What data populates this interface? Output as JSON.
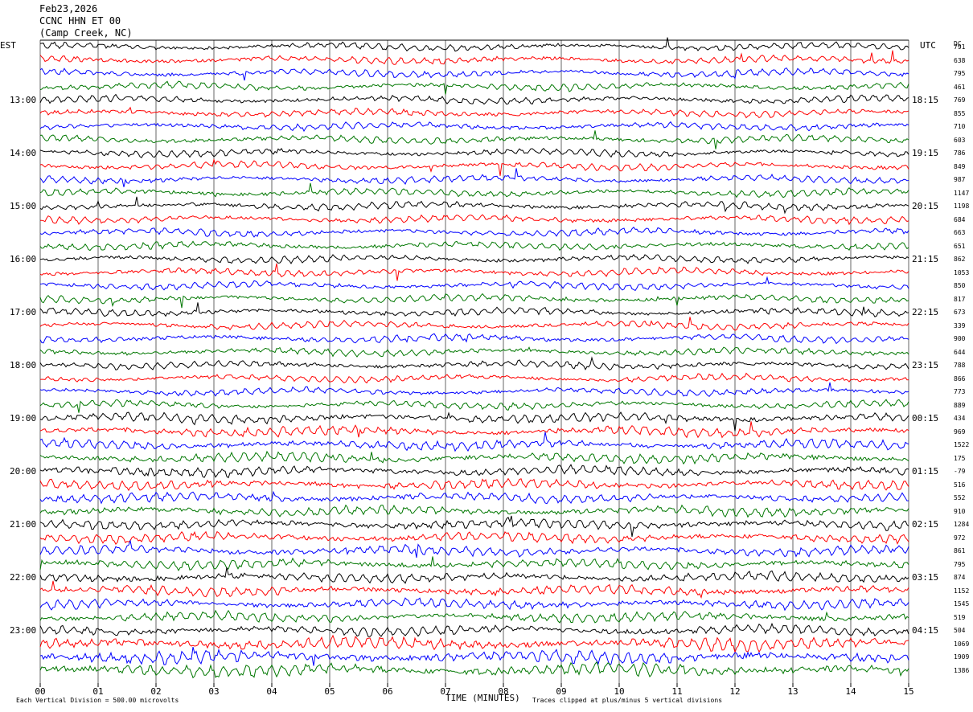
{
  "header": {
    "date": "Feb23,2026",
    "station": "CCNC HHN ET 00",
    "location": "(Camp Creek, NC)"
  },
  "left_label": "EST",
  "right_label": "UTC",
  "dc_label": "DC",
  "footer": {
    "scale_note": "Each Vertical Division =  500.00 microvolts",
    "xlabel": "TIME (MINUTES)",
    "clip_note": "Traces clipped at plus/minus 5 vertical divisions"
  },
  "chart_data": {
    "type": "line",
    "title": "Feb23,2026 CCNC HHN ET 00 (Camp Creek, NC)",
    "xlabel": "TIME (MINUTES)",
    "ylabel": "",
    "xlim": [
      0,
      15
    ],
    "x_ticks": [
      "00",
      "01",
      "02",
      "03",
      "04",
      "05",
      "06",
      "07",
      "08",
      "09",
      "10",
      "11",
      "12",
      "13",
      "14",
      "15"
    ],
    "grid": "vertical lines at each minute",
    "trace_count": 48,
    "trace_interval_minutes": 15,
    "trace_colors": [
      "#000000",
      "#ff0000",
      "#0000ff",
      "#007700"
    ],
    "est_hour_labels": [
      "13:00",
      "14:00",
      "15:00",
      "16:00",
      "17:00",
      "18:00",
      "19:00",
      "20:00",
      "21:00",
      "22:00",
      "23:00"
    ],
    "utc_labels": [
      "18:15",
      "19:15",
      "20:15",
      "21:15",
      "22:15",
      "23:15",
      "00:15",
      "01:15",
      "02:15",
      "03:15",
      "04:15"
    ],
    "dc_offsets": [
      791,
      638,
      795,
      461,
      769,
      855,
      710,
      603,
      786,
      849,
      987,
      1147,
      1198,
      684,
      663,
      651,
      862,
      1053,
      850,
      817,
      673,
      339,
      900,
      644,
      788,
      866,
      773,
      889,
      434,
      969,
      1522,
      175,
      -79,
      516,
      552,
      910,
      1284,
      972,
      861,
      795,
      874,
      1152,
      1545,
      519,
      504,
      1069,
      1909,
      1386
    ]
  }
}
